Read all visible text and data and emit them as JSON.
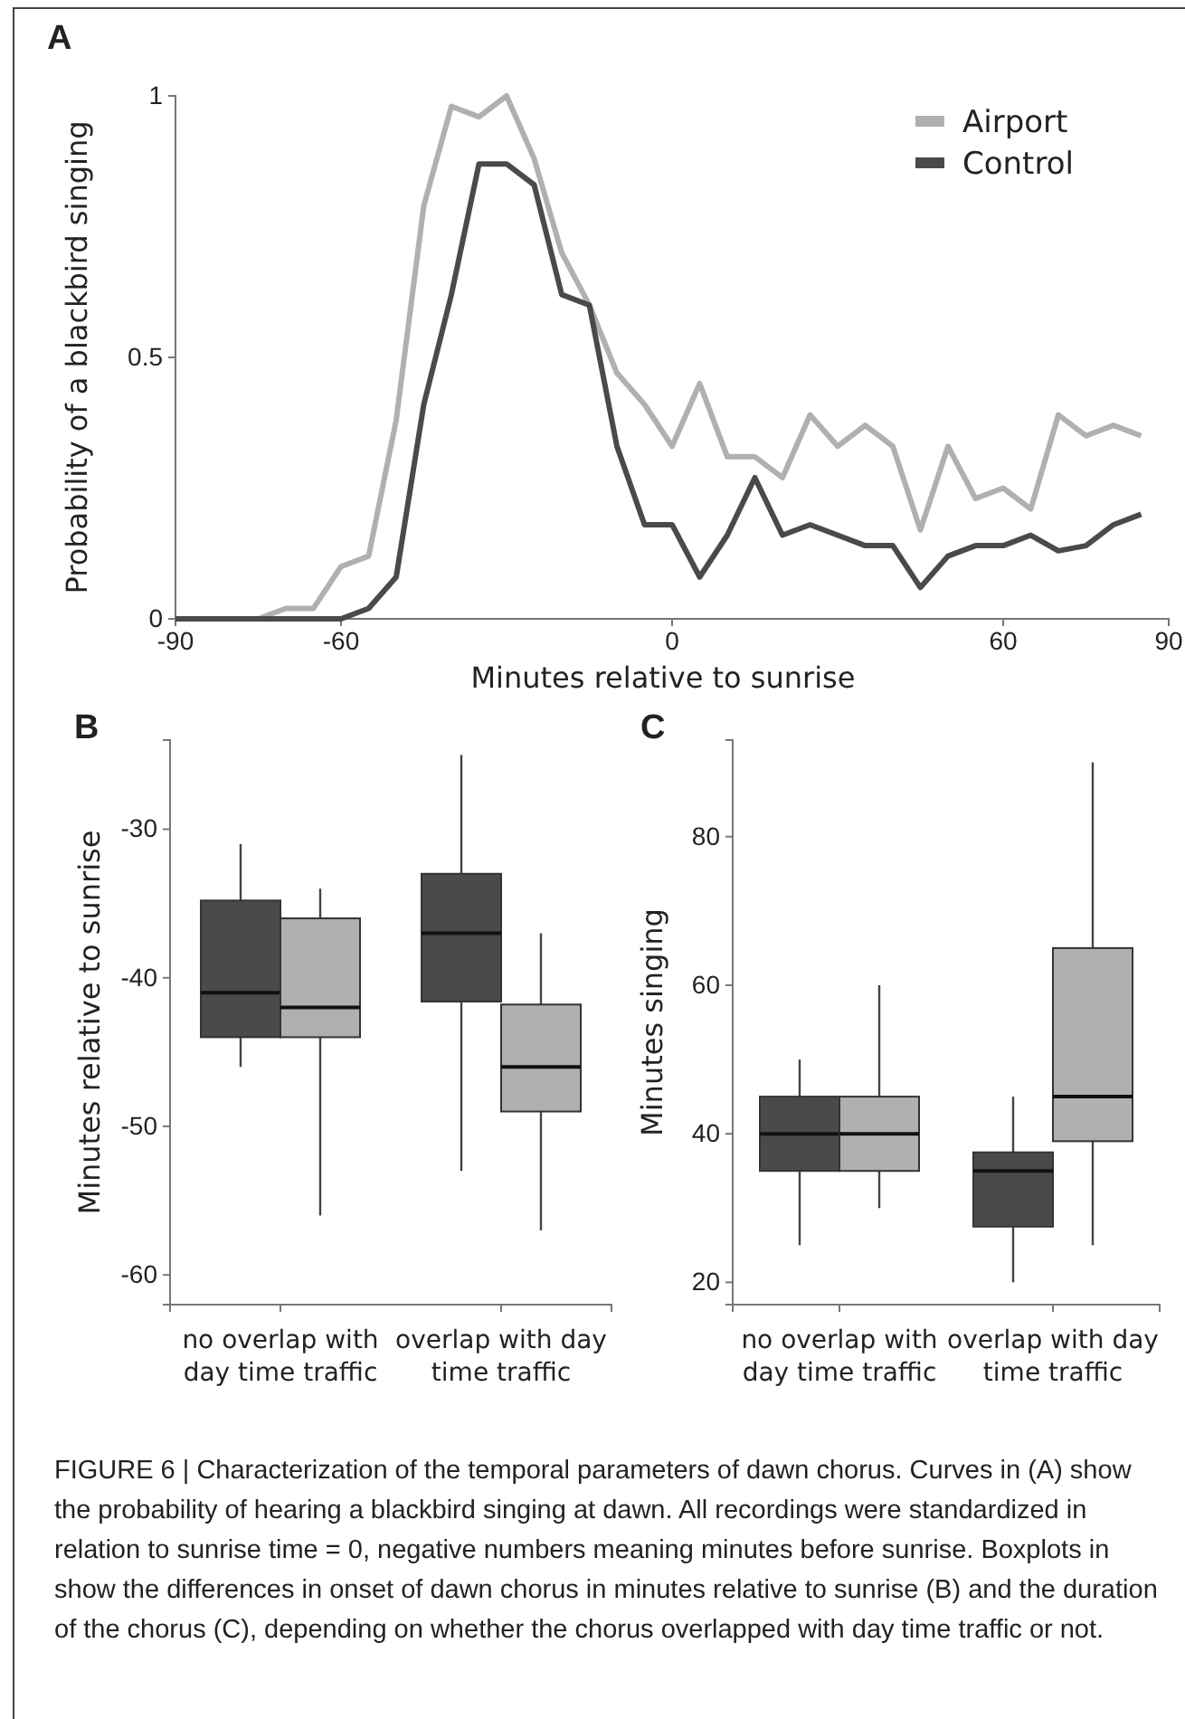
{
  "chart_data": [
    {
      "type": "line",
      "title": "A",
      "xlabel": "Minutes relative to sunrise",
      "ylabel": "Probability of a blackbird singing",
      "x": [
        -90,
        -85,
        -80,
        -75,
        -70,
        -65,
        -60,
        -55,
        -50,
        -45,
        -40,
        -35,
        -30,
        -25,
        -20,
        -15,
        -10,
        -5,
        0,
        5,
        10,
        15,
        20,
        25,
        30,
        35,
        40,
        45,
        50,
        55,
        60,
        65,
        70,
        75,
        80,
        85
      ],
      "xlim": [
        -90,
        90
      ],
      "xticks": [
        -90,
        -60,
        0,
        60,
        90
      ],
      "ylim": [
        0,
        1
      ],
      "yticks": [
        0,
        0.5,
        1
      ],
      "legend": "top right",
      "marker": "none",
      "line_style": "solid",
      "series": [
        {
          "name": "Airport",
          "color": "#b0b0b0",
          "values": [
            0,
            0,
            0,
            0,
            0.02,
            0.02,
            0.1,
            0.12,
            0.38,
            0.79,
            0.98,
            0.96,
            1.0,
            0.88,
            0.7,
            0.6,
            0.47,
            0.41,
            0.33,
            0.45,
            0.31,
            0.31,
            0.27,
            0.39,
            0.33,
            0.37,
            0.33,
            0.17,
            0.33,
            0.23,
            0.25,
            0.21,
            0.39,
            0.35,
            0.37,
            0.35
          ]
        },
        {
          "name": "Control",
          "color": "#4a4a4a",
          "values": [
            0,
            0,
            0,
            0,
            0,
            0,
            0,
            0.02,
            0.08,
            0.41,
            0.62,
            0.87,
            0.87,
            0.83,
            0.62,
            0.6,
            0.33,
            0.18,
            0.18,
            0.08,
            0.16,
            0.27,
            0.16,
            0.18,
            0.16,
            0.14,
            0.14,
            0.06,
            0.12,
            0.14,
            0.14,
            0.16,
            0.13,
            0.14,
            0.18,
            0.2
          ]
        }
      ]
    },
    {
      "type": "box",
      "title": "B",
      "ylabel": "Minutes relative to sunrise",
      "categories": [
        "no overlap with day time traffic",
        "overlap with day time traffic"
      ],
      "ylim": [
        -62,
        -24
      ],
      "yticks": [
        -30,
        -40,
        -50,
        -60
      ],
      "series": [
        {
          "color": "#4a4a4a",
          "boxes": [
            {
              "low": -46,
              "q1": -44,
              "median": -41,
              "q3": -34.8,
              "high": -31
            },
            {
              "low": -53,
              "q1": -41.6,
              "median": -37,
              "q3": -33,
              "high": -25
            }
          ]
        },
        {
          "color": "#b0b0b0",
          "boxes": [
            {
              "low": -56,
              "q1": -44,
              "median": -42,
              "q3": -36,
              "high": -34
            },
            {
              "low": -57,
              "q1": -49,
              "median": -46,
              "q3": -41.8,
              "high": -37
            }
          ]
        }
      ]
    },
    {
      "type": "box",
      "title": "C",
      "ylabel": "Minutes singing",
      "categories": [
        "no overlap with day time traffic",
        "overlap with day time traffic"
      ],
      "ylim": [
        17,
        93
      ],
      "yticks": [
        20,
        40,
        60,
        80
      ],
      "annotations": [
        "FIGURE 6 | Characterization of the temporal parameters of dawn chorus. Curves in (A) show the probability of hearing a blackbird singing at dawn. All recordings were standardized in relation to sunrise time = 0, negative numbers meaning minutes before sunrise. Boxplots in show the differences in onset of dawn chorus in minutes relative to sunrise (B) and the duration of the chorus (C), depending on whether the chorus overlapped with day time traffic or not."
      ],
      "series": [
        {
          "color": "#4a4a4a",
          "boxes": [
            {
              "low": 25,
              "q1": 35,
              "median": 40,
              "q3": 45,
              "high": 50
            },
            {
              "low": 20,
              "q1": 27.5,
              "median": 35,
              "q3": 37.5,
              "high": 45
            }
          ]
        },
        {
          "color": "#b0b0b0",
          "boxes": [
            {
              "low": 30,
              "q1": 35,
              "median": 40,
              "q3": 45,
              "high": 60
            },
            {
              "low": 25,
              "q1": 39,
              "median": 45,
              "q3": 65,
              "high": 90
            }
          ]
        }
      ]
    }
  ]
}
